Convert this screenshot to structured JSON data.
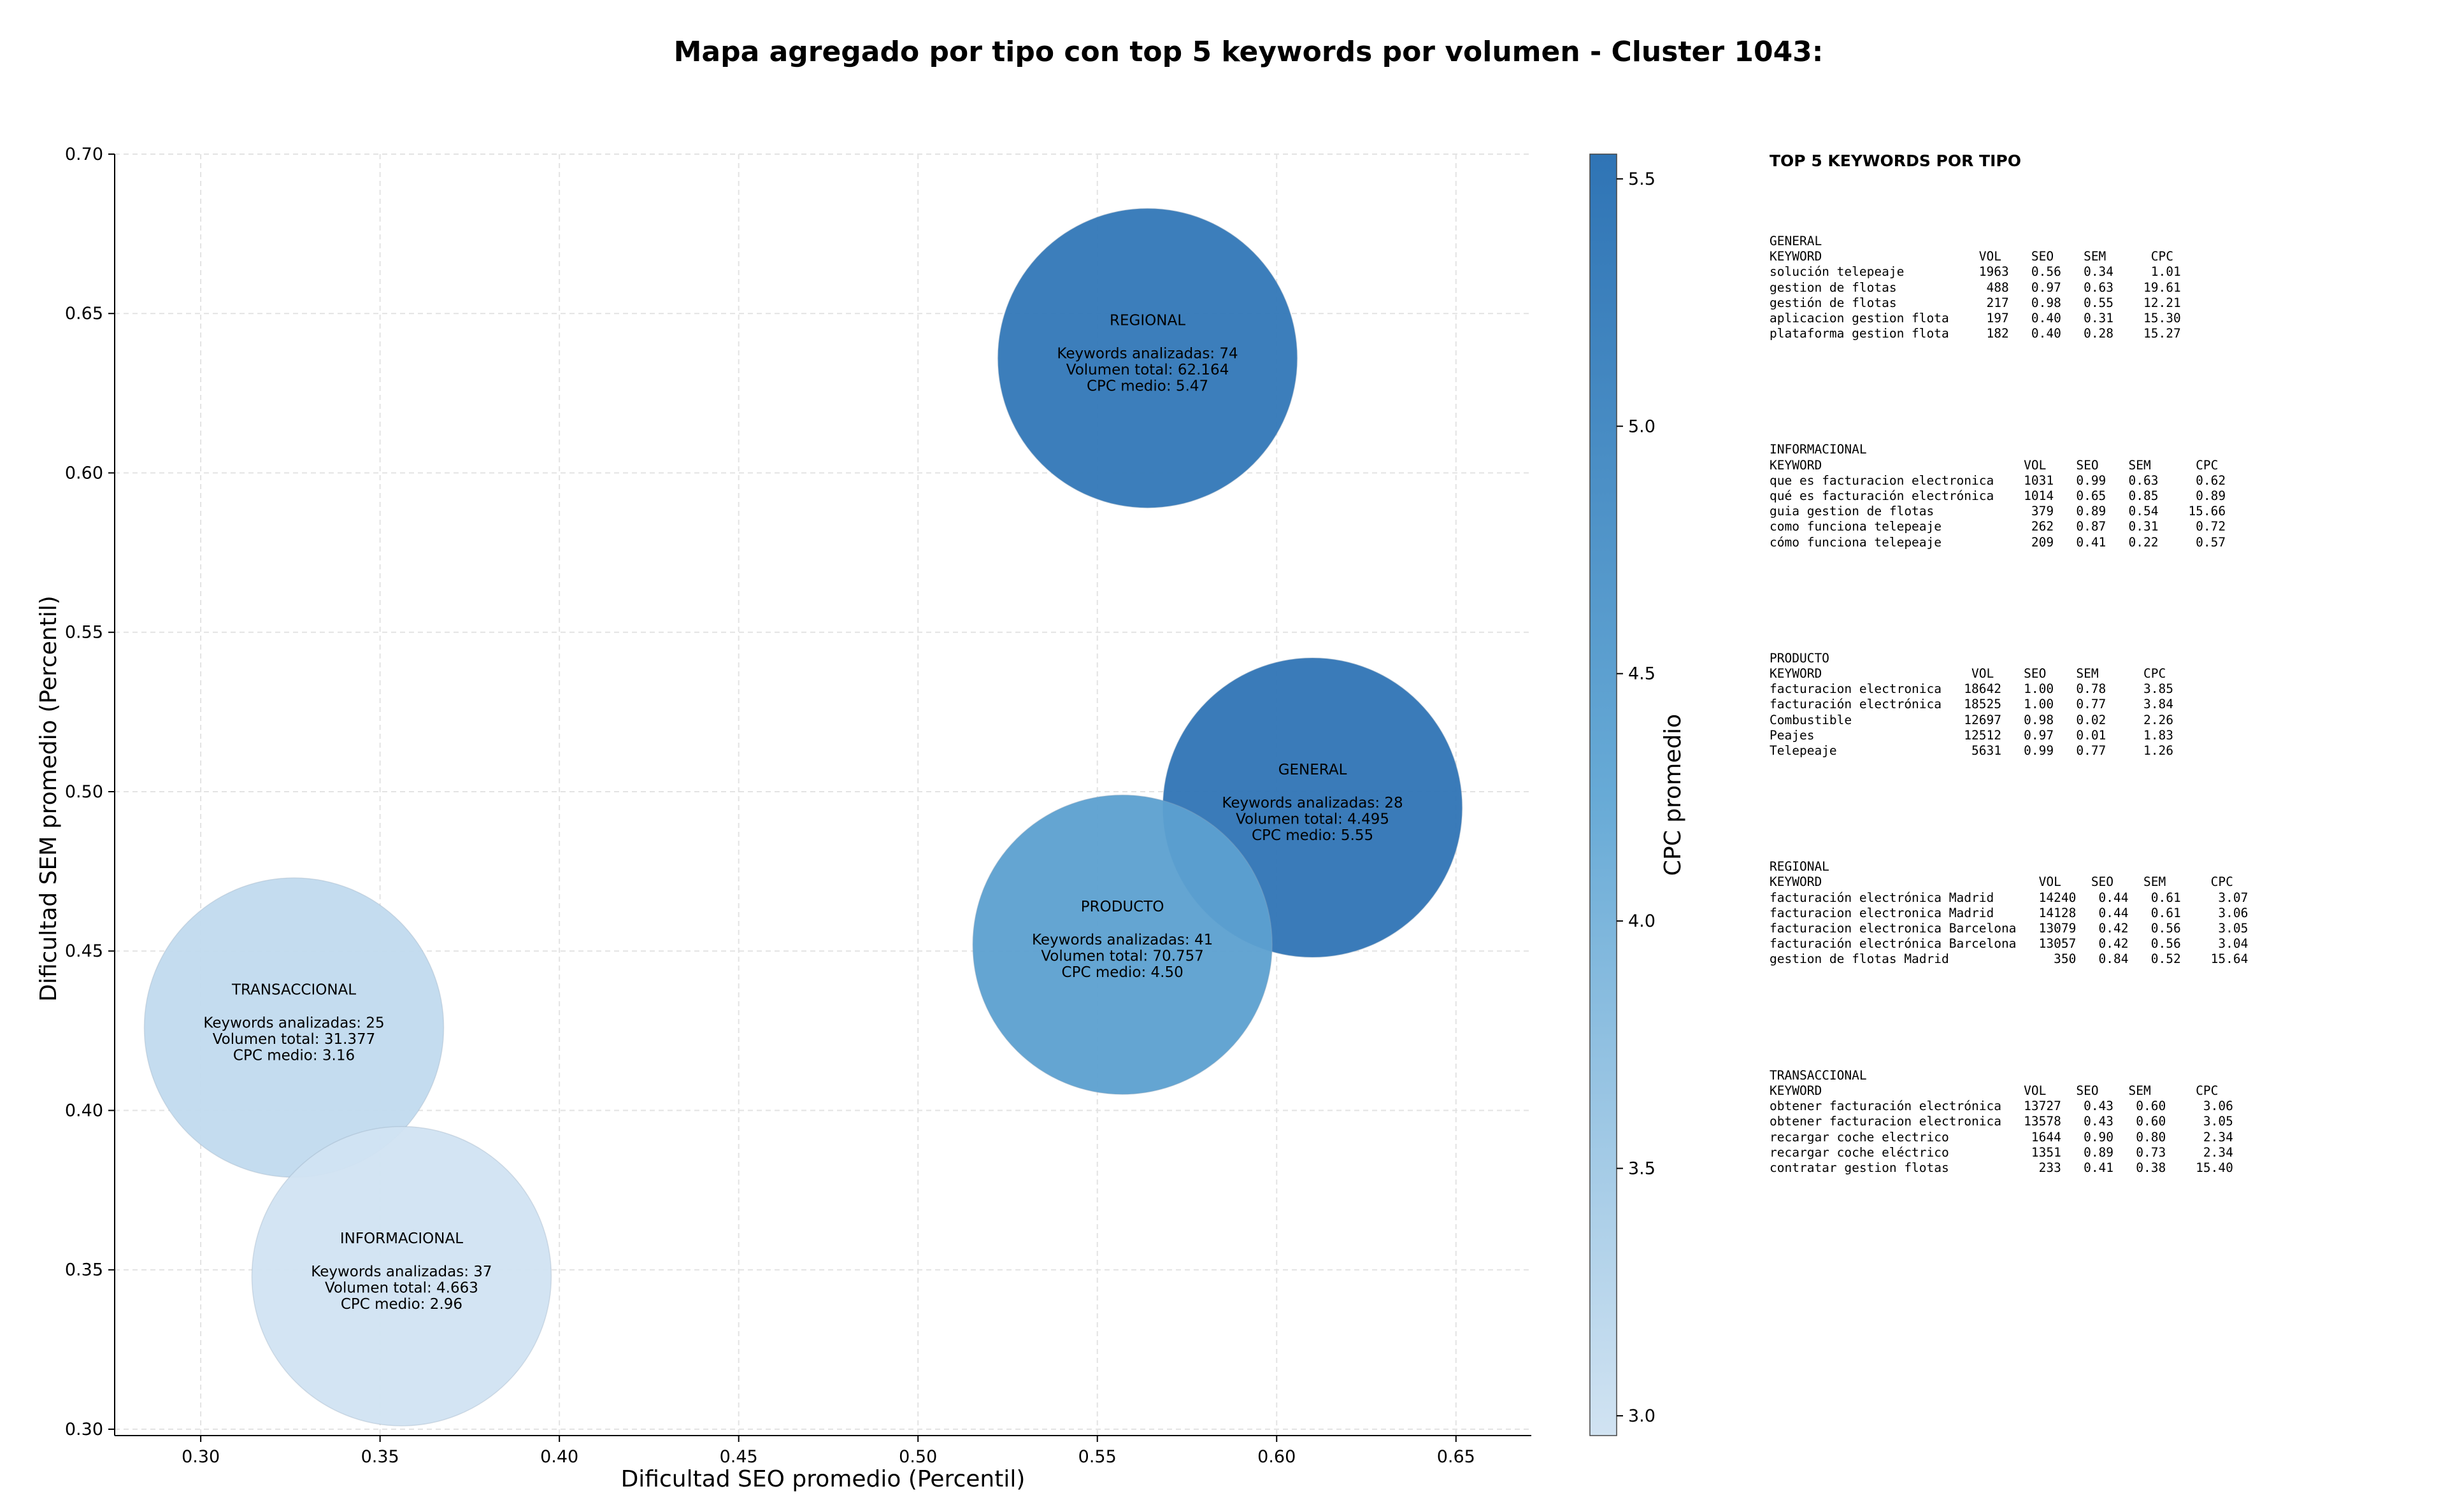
{
  "chart_data": {
    "type": "scatter",
    "title": "Mapa agregado por tipo con top 5 keywords por volumen - Cluster 1043:",
    "xlabel": "Dificultad SEO promedio (Percentil)",
    "ylabel": "Dificultad SEM promedio (Percentil)",
    "colorbar_label": "CPC promedio",
    "xlim": [
      0.276,
      0.671
    ],
    "ylim": [
      0.298,
      0.7
    ],
    "x_ticks": [
      "0.30",
      "0.35",
      "0.40",
      "0.45",
      "0.50",
      "0.55",
      "0.60",
      "0.65"
    ],
    "y_ticks": [
      "0.30",
      "0.35",
      "0.40",
      "0.45",
      "0.50",
      "0.55",
      "0.60",
      "0.65",
      "0.70"
    ],
    "colorbar_ticks": [
      "3.0",
      "3.5",
      "4.0",
      "4.5",
      "5.0",
      "5.5"
    ],
    "colorbar_range": [
      2.96,
      5.55
    ],
    "colors": {
      "low": "#d1e3f2",
      "mid": "#67aad6",
      "high": "#2f74b5"
    },
    "grid": true,
    "points": [
      {
        "name": "REGIONAL",
        "x": 0.564,
        "y": 0.636,
        "keywords": 74,
        "volume": 62164,
        "cpc": 5.47,
        "lines": [
          "Keywords analizadas: 74",
          "Volumen total: 62.164",
          "CPC medio: 5.47"
        ]
      },
      {
        "name": "GENERAL",
        "x": 0.61,
        "y": 0.495,
        "keywords": 28,
        "volume": 4495,
        "cpc": 5.55,
        "lines": [
          "Keywords analizadas: 28",
          "Volumen total: 4.495",
          "CPC medio: 5.55"
        ]
      },
      {
        "name": "PRODUCTO",
        "x": 0.557,
        "y": 0.452,
        "keywords": 41,
        "volume": 70757,
        "cpc": 4.5,
        "lines": [
          "Keywords analizadas: 41",
          "Volumen total: 70.757",
          "CPC medio: 4.50"
        ]
      },
      {
        "name": "TRANSACCIONAL",
        "x": 0.326,
        "y": 0.426,
        "keywords": 25,
        "volume": 31377,
        "cpc": 3.16,
        "lines": [
          "Keywords analizadas: 25",
          "Volumen total: 31.377",
          "CPC medio: 3.16"
        ]
      },
      {
        "name": "INFORMACIONAL",
        "x": 0.356,
        "y": 0.348,
        "keywords": 37,
        "volume": 4663,
        "cpc": 2.96,
        "lines": [
          "Keywords analizadas: 37",
          "Volumen total: 4.663",
          "CPC medio: 2.96"
        ]
      }
    ]
  },
  "side_panel": {
    "title": "TOP 5 KEYWORDS POR TIPO",
    "blocks": [
      "GENERAL\nKEYWORD                     VOL    SEO    SEM      CPC\nsolución telepeaje          1963   0.56   0.34     1.01\ngestion de flotas            488   0.97   0.63    19.61\ngestión de flotas            217   0.98   0.55    12.21\naplicacion gestion flota     197   0.40   0.31    15.30\nplataforma gestion flota     182   0.40   0.28    15.27",
      "INFORMACIONAL\nKEYWORD                           VOL    SEO    SEM      CPC\nque es facturacion electronica    1031   0.99   0.63     0.62\nqué es facturación electrónica    1014   0.65   0.85     0.89\nguia gestion de flotas             379   0.89   0.54    15.66\ncomo funciona telepeaje            262   0.87   0.31     0.72\ncómo funciona telepeaje            209   0.41   0.22     0.57",
      "PRODUCTO\nKEYWORD                    VOL    SEO    SEM      CPC\nfacturacion electronica   18642   1.00   0.78     3.85\nfacturación electrónica   18525   1.00   0.77     3.84\nCombustible               12697   0.98   0.02     2.26\nPeajes                    12512   0.97   0.01     1.83\nTelepeaje                  5631   0.99   0.77     1.26",
      "REGIONAL\nKEYWORD                             VOL    SEO    SEM      CPC\nfacturación electrónica Madrid      14240   0.44   0.61     3.07\nfacturacion electronica Madrid      14128   0.44   0.61     3.06\nfacturacion electronica Barcelona   13079   0.42   0.56     3.05\nfacturación electrónica Barcelona   13057   0.42   0.56     3.04\ngestion de flotas Madrid              350   0.84   0.52    15.64",
      "TRANSACCIONAL\nKEYWORD                           VOL    SEO    SEM      CPC\nobtener facturación electrónica   13727   0.43   0.60     3.06\nobtener facturacion electronica   13578   0.43   0.60     3.05\nrecargar coche electrico           1644   0.90   0.80     2.34\nrecargar coche eléctrico           1351   0.89   0.73     2.34\ncontratar gestion flotas            233   0.41   0.38    15.40"
    ]
  }
}
